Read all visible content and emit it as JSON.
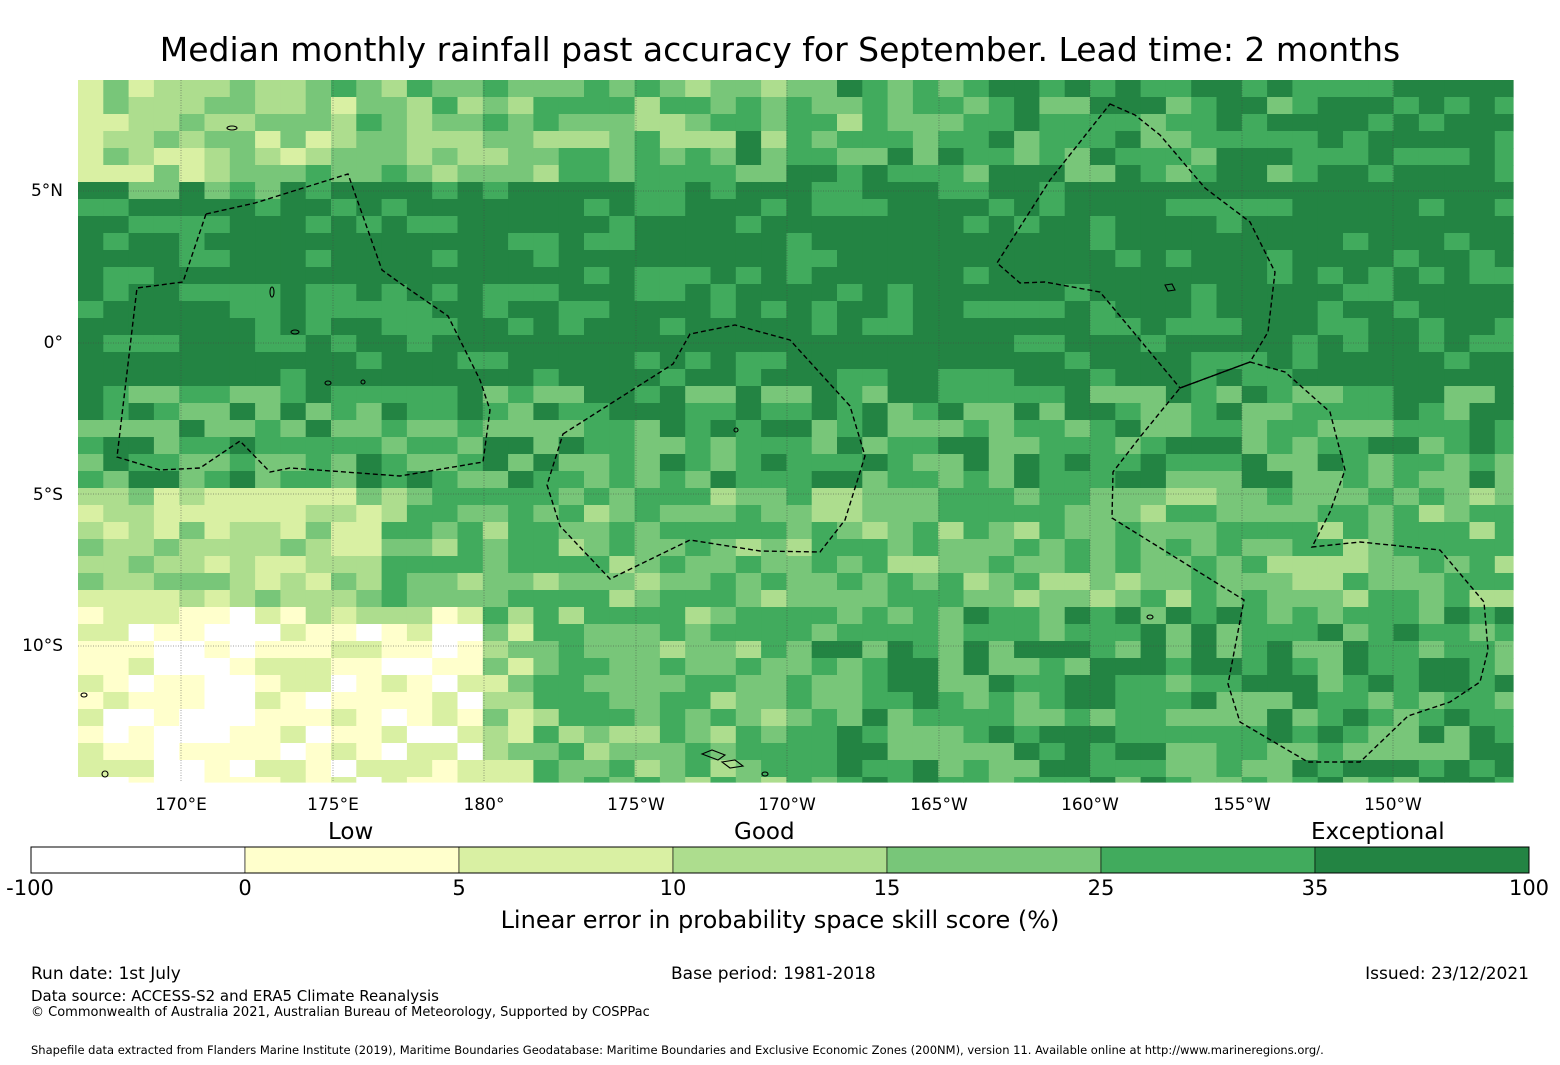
{
  "title": "Median monthly rainfall past accuracy for September. Lead time: 2 months",
  "latitude_labels": [
    "5°N",
    "0°",
    "5°S",
    "10°S"
  ],
  "longitude_labels": [
    "170°E",
    "175°E",
    "180°",
    "175°W",
    "170°W",
    "165°W",
    "160°W",
    "155°W",
    "150°W"
  ],
  "colorbar": {
    "title": "Linear error in probability space skill score (%)",
    "qualitative_labels": [
      "Low",
      "Good",
      "Exceptional"
    ],
    "ticks": [
      "-100",
      "0",
      "5",
      "10",
      "15",
      "25",
      "35",
      "100"
    ],
    "colors": [
      "#ffffff",
      "#ffffcc",
      "#d9f0a3",
      "#addd8e",
      "#78c679",
      "#41ab5d",
      "#238443"
    ]
  },
  "footer": {
    "run_date": "Run date: 1st July",
    "base_period": "Base period: 1981-2018",
    "issued": "Issued: 23/12/2021",
    "data_source": "Data source: ACCESS-S2 and ERA5 Climate Reanalysis",
    "copyright": "© Commonwealth of Australia 2021, Australian Bureau of Meteorology, Supported by COSPPac",
    "shapefile": "Shapefile data extracted from Flanders Marine Institute (2019), Maritime Boundaries Geodatabase: Maritime Boundaries and Exclusive Economic Zones (200NM), version 11. Available online at http://www.marineregions.org/."
  }
}
